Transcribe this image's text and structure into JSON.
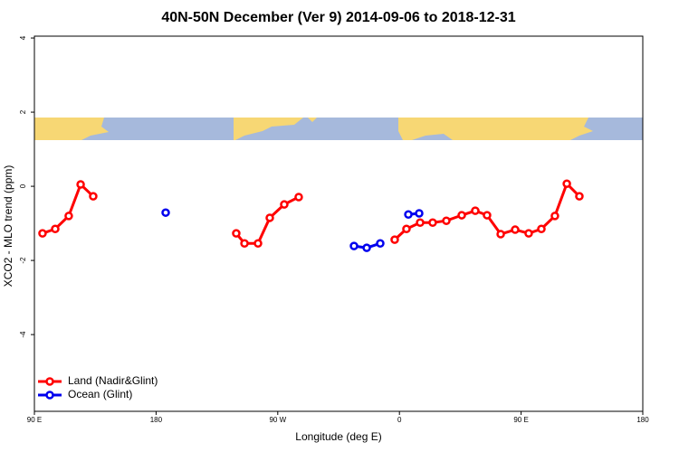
{
  "chart_data": {
    "type": "line",
    "title": "40N-50N December (Ver 9)   2014-09-06 to 2018-12-31",
    "x_label": "Longitude (deg E)",
    "y_label": "XCO2 - MLO trend (ppm)",
    "xlim": [
      90,
      540
    ],
    "xticks": [
      {
        "value": 90,
        "label": "90 E"
      },
      {
        "value": 180,
        "label": "180"
      },
      {
        "value": 270,
        "label": "90 W"
      },
      {
        "value": 360,
        "label": "0"
      },
      {
        "value": 450,
        "label": "90 E"
      },
      {
        "value": 540,
        "label": "180"
      }
    ],
    "ylim": [
      -6.07,
      4.05
    ],
    "yticks": [
      4,
      2,
      0,
      -2,
      -4
    ],
    "legend": "bottom-left",
    "series": [
      {
        "name": "Land (Nadir&Glint)",
        "color": "#ff0000",
        "x": [
          96,
          105.4,
          115.4,
          124.2,
          133.5,
          null,
          239.3,
          245.4,
          255.4,
          264.1,
          274.8,
          285.5,
          null,
          356.5,
          365.2,
          375.3,
          384.6,
          394.7,
          406.1,
          416.1,
          424.8,
          434.9,
          445.6,
          455.6,
          465,
          475,
          483.8,
          493.1
        ],
        "values": [
          -1.27,
          -1.15,
          -0.8,
          0.05,
          -0.27,
          null,
          -1.27,
          -1.54,
          -1.54,
          -0.85,
          -0.49,
          -0.29,
          null,
          -1.44,
          -1.15,
          -0.98,
          -0.98,
          -0.93,
          -0.78,
          -0.66,
          -0.78,
          -1.29,
          -1.17,
          -1.27,
          -1.15,
          -0.8,
          0.07,
          -0.27
        ]
      },
      {
        "name": "Ocean (Glint)",
        "color": "#0000ee",
        "x": [
          187.1,
          null,
          326.4,
          335.8,
          345.8,
          null,
          366.6,
          374.6
        ],
        "values": [
          -0.71,
          null,
          -1.61,
          -1.66,
          -1.54,
          null,
          -0.76,
          -0.73
        ]
      }
    ]
  }
}
